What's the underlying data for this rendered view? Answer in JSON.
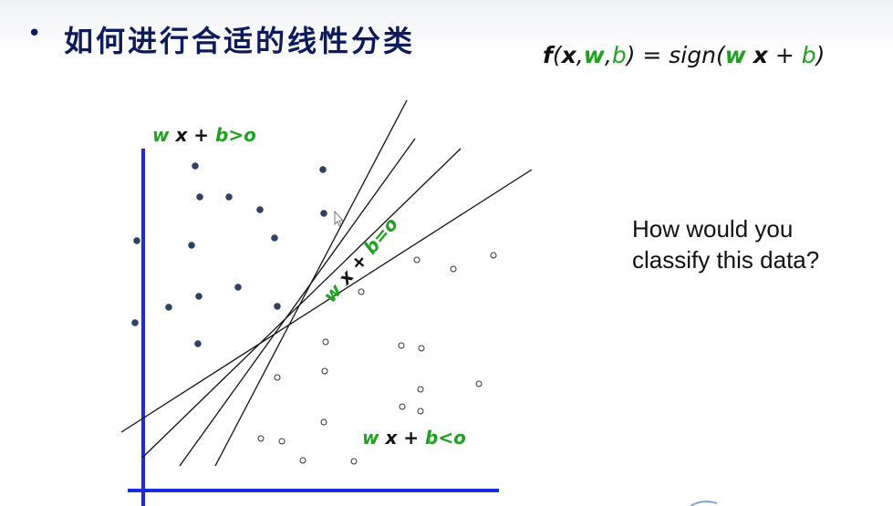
{
  "slide": {
    "bullet": "•",
    "title": "如何进行合适的线性分类"
  },
  "formula": {
    "f": "f",
    "open": "(",
    "x": "x",
    "comma1": ",",
    "w": "w",
    "comma2": ",",
    "b": "b",
    "close_eq": ") = sign(",
    "w2": "w",
    "x2": "x",
    "plus": " + ",
    "b2": "b",
    "end": ")"
  },
  "question": {
    "line1": "How would you",
    "line2": "classify this data?"
  },
  "labels": {
    "upper_region": {
      "w": "w",
      "rest": " x + ",
      "cond": "b>o"
    },
    "lower_region": {
      "w": "w",
      "rest": " x + ",
      "cond": "b<o"
    },
    "boundary": {
      "w": "w",
      "x": " x + ",
      "cond": "b=o"
    }
  },
  "colors": {
    "axis": "#1b2be0",
    "green": "#1fa21f",
    "dot_filled": "#2e4266",
    "title": "#0d1a5c"
  }
}
